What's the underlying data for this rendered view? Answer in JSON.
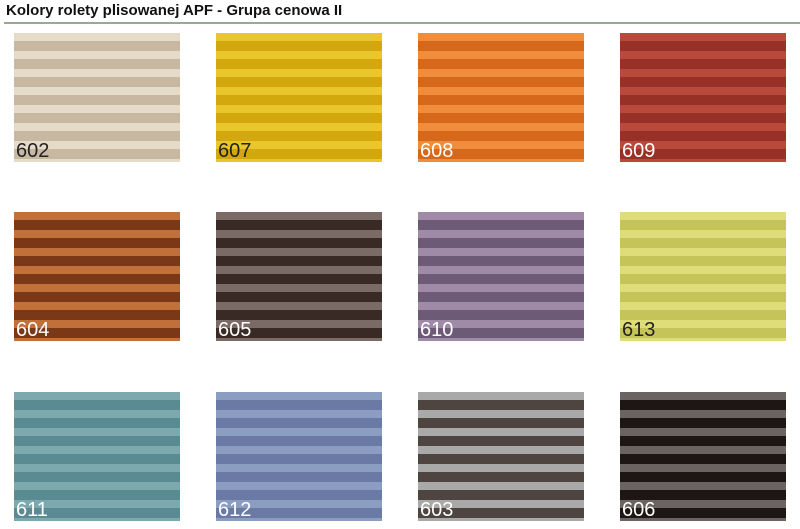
{
  "title": "Kolory rolety plisowanej APF - Grupa cenowa II",
  "swatches": [
    {
      "code": "602",
      "light": "#e6dac8",
      "dark": "#c8b8a2",
      "text": "#222222"
    },
    {
      "code": "607",
      "light": "#e9c72c",
      "dark": "#d2a80e",
      "text": "#222222"
    },
    {
      "code": "608",
      "light": "#ef8d3c",
      "dark": "#d6681c",
      "text": "#ffffff"
    },
    {
      "code": "609",
      "light": "#b9493a",
      "dark": "#973026",
      "text": "#ffffff"
    },
    {
      "code": "604",
      "light": "#c2703a",
      "dark": "#7a3816",
      "text": "#ffffff"
    },
    {
      "code": "605",
      "light": "#7b6b66",
      "dark": "#3a2a25",
      "text": "#ffffff"
    },
    {
      "code": "610",
      "light": "#9f8ba8",
      "dark": "#6d5a76",
      "text": "#ffffff"
    },
    {
      "code": "613",
      "light": "#dedd7a",
      "dark": "#c5c458",
      "text": "#222222"
    },
    {
      "code": "611",
      "light": "#7ba9ae",
      "dark": "#5a8a92",
      "text": "#ffffff"
    },
    {
      "code": "612",
      "light": "#8b9dc1",
      "dark": "#6a7aa4",
      "text": "#ffffff"
    },
    {
      "code": "603",
      "light": "#a9a9a9",
      "dark": "#4e4440",
      "text": "#ffffff"
    },
    {
      "code": "606",
      "light": "#6b6361",
      "dark": "#1e1614",
      "text": "#ffffff"
    }
  ]
}
